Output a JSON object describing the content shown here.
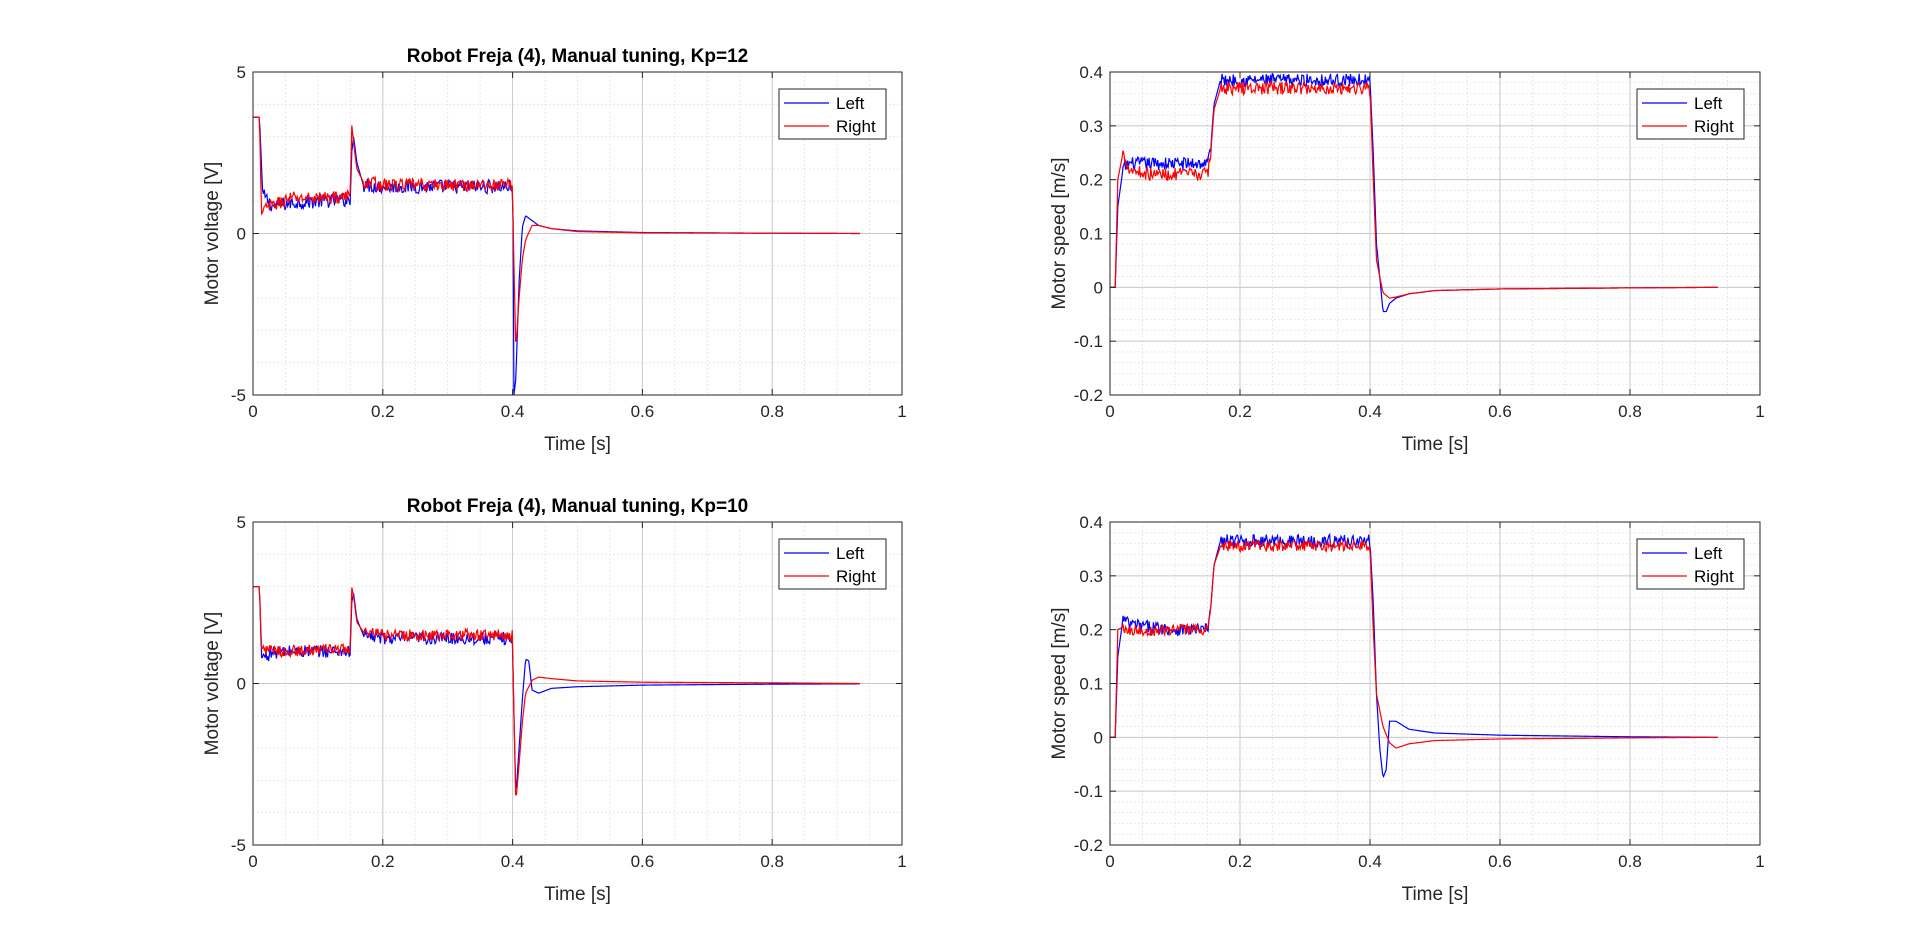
{
  "figure": {
    "background": "#ffffff"
  },
  "colors": {
    "left": "#0000ff",
    "right": "#ff0000",
    "axis": "#262626",
    "grid": "#dcdcdc"
  },
  "chart_data": [
    {
      "type": "line",
      "title": "Robot Freja (4), Manual tuning, Kp=12",
      "xlabel": "Time [s]",
      "ylabel": "Motor voltage [V]",
      "xlim": [
        0,
        1
      ],
      "ylim": [
        -5,
        5
      ],
      "xticks": [
        0,
        0.2,
        0.4,
        0.6,
        0.8,
        1
      ],
      "xtick_labels": [
        "0",
        "0.2",
        "0.4",
        "0.6",
        "0.8",
        "1"
      ],
      "yticks": [
        -5,
        0,
        5
      ],
      "ytick_labels": [
        "-5",
        "0",
        "5"
      ],
      "grid": true,
      "minor_grid": true,
      "legend_position": "top-right",
      "series": [
        {
          "name": "Left",
          "color": "#0000ff",
          "x": [
            0,
            0.005,
            0.01,
            0.015,
            0.03,
            0.06,
            0.1,
            0.15,
            0.152,
            0.155,
            0.16,
            0.17,
            0.2,
            0.3,
            0.4,
            0.401,
            0.402,
            0.405,
            0.41,
            0.415,
            0.42,
            0.43,
            0.44,
            0.46,
            0.5,
            0.6,
            0.8,
            0.935
          ],
          "y": [
            3.6,
            3.6,
            3.6,
            1.2,
            0.85,
            0.95,
            1.0,
            1.05,
            2.5,
            3.0,
            2.2,
            1.5,
            1.45,
            1.45,
            1.45,
            0,
            -5.0,
            -4.5,
            -1.5,
            0.2,
            0.55,
            0.4,
            0.25,
            0.15,
            0.08,
            0.03,
            0.01,
            0.0
          ],
          "noise": 0.22,
          "noise_ranges": [
            [
              0.015,
              0.15
            ],
            [
              0.17,
              0.4
            ]
          ]
        },
        {
          "name": "Right",
          "color": "#ff0000",
          "x": [
            0,
            0.005,
            0.01,
            0.013,
            0.02,
            0.06,
            0.1,
            0.15,
            0.152,
            0.155,
            0.16,
            0.17,
            0.2,
            0.3,
            0.4,
            0.401,
            0.405,
            0.41,
            0.415,
            0.42,
            0.43,
            0.44,
            0.46,
            0.5,
            0.6,
            0.8,
            0.935
          ],
          "y": [
            3.6,
            3.6,
            3.6,
            0.6,
            0.8,
            1.1,
            1.1,
            1.15,
            3.4,
            2.8,
            2.0,
            1.6,
            1.5,
            1.5,
            1.5,
            0,
            -3.6,
            -2.0,
            -0.8,
            -0.2,
            0.25,
            0.25,
            0.15,
            0.06,
            0.02,
            0.01,
            0.0
          ],
          "noise": 0.2,
          "noise_ranges": [
            [
              0.015,
              0.15
            ],
            [
              0.17,
              0.4
            ]
          ]
        }
      ]
    },
    {
      "type": "line",
      "title": "",
      "xlabel": "Time [s]",
      "ylabel": "Motor speed [m/s]",
      "xlim": [
        0,
        1
      ],
      "ylim": [
        -0.2,
        0.4
      ],
      "xticks": [
        0,
        0.2,
        0.4,
        0.6,
        0.8,
        1
      ],
      "xtick_labels": [
        "0",
        "0.2",
        "0.4",
        "0.6",
        "0.8",
        "1"
      ],
      "yticks": [
        -0.2,
        -0.1,
        0,
        0.1,
        0.2,
        0.3,
        0.4
      ],
      "ytick_labels": [
        "-0.2",
        "-0.1",
        "0",
        "0.1",
        "0.2",
        "0.3",
        "0.4"
      ],
      "grid": true,
      "minor_grid": true,
      "legend_position": "top-right",
      "series": [
        {
          "name": "Left",
          "color": "#0000ff",
          "x": [
            0,
            0.008,
            0.012,
            0.02,
            0.03,
            0.06,
            0.1,
            0.15,
            0.155,
            0.16,
            0.17,
            0.2,
            0.3,
            0.4,
            0.405,
            0.41,
            0.415,
            0.42,
            0.425,
            0.43,
            0.44,
            0.46,
            0.5,
            0.6,
            0.8,
            0.935
          ],
          "y": [
            0,
            0,
            0.15,
            0.22,
            0.23,
            0.23,
            0.23,
            0.23,
            0.26,
            0.34,
            0.385,
            0.385,
            0.385,
            0.385,
            0.25,
            0.08,
            0.02,
            -0.045,
            -0.045,
            -0.03,
            -0.02,
            -0.012,
            -0.006,
            -0.003,
            -0.001,
            0.0
          ],
          "noise": 0.012,
          "noise_ranges": [
            [
              0.02,
              0.155
            ],
            [
              0.17,
              0.4
            ]
          ]
        },
        {
          "name": "Right",
          "color": "#ff0000",
          "x": [
            0,
            0.008,
            0.012,
            0.02,
            0.03,
            0.06,
            0.1,
            0.15,
            0.155,
            0.16,
            0.17,
            0.2,
            0.3,
            0.4,
            0.405,
            0.41,
            0.415,
            0.42,
            0.43,
            0.44,
            0.46,
            0.5,
            0.6,
            0.8,
            0.935
          ],
          "y": [
            0,
            0,
            0.2,
            0.25,
            0.22,
            0.21,
            0.21,
            0.21,
            0.25,
            0.33,
            0.37,
            0.37,
            0.37,
            0.37,
            0.2,
            0.05,
            0.02,
            -0.01,
            -0.02,
            -0.018,
            -0.012,
            -0.006,
            -0.003,
            -0.001,
            0.0
          ],
          "noise": 0.012,
          "noise_ranges": [
            [
              0.02,
              0.155
            ],
            [
              0.17,
              0.4
            ]
          ]
        }
      ]
    },
    {
      "type": "line",
      "title": "Robot Freja (4), Manual tuning, Kp=10",
      "xlabel": "Time [s]",
      "ylabel": "Motor voltage [V]",
      "xlim": [
        0,
        1
      ],
      "ylim": [
        -5,
        5
      ],
      "xticks": [
        0,
        0.2,
        0.4,
        0.6,
        0.8,
        1
      ],
      "xtick_labels": [
        "0",
        "0.2",
        "0.4",
        "0.6",
        "0.8",
        "1"
      ],
      "yticks": [
        -5,
        0,
        5
      ],
      "ytick_labels": [
        "-5",
        "0",
        "5"
      ],
      "grid": true,
      "minor_grid": true,
      "legend_position": "top-right",
      "series": [
        {
          "name": "Left",
          "color": "#0000ff",
          "x": [
            0,
            0.005,
            0.01,
            0.013,
            0.03,
            0.06,
            0.1,
            0.15,
            0.152,
            0.155,
            0.16,
            0.17,
            0.2,
            0.3,
            0.4,
            0.401,
            0.405,
            0.41,
            0.415,
            0.42,
            0.425,
            0.43,
            0.44,
            0.46,
            0.5,
            0.6,
            0.8,
            0.935
          ],
          "y": [
            3.0,
            3.0,
            3.0,
            0.8,
            0.95,
            1.0,
            1.0,
            1.0,
            2.5,
            2.8,
            2.0,
            1.5,
            1.4,
            1.4,
            1.4,
            0,
            -3.5,
            -2.0,
            -0.5,
            0.75,
            0.7,
            -0.2,
            -0.3,
            -0.15,
            -0.1,
            -0.05,
            -0.02,
            -0.01
          ],
          "noise": 0.2,
          "noise_ranges": [
            [
              0.015,
              0.15
            ],
            [
              0.17,
              0.4
            ]
          ]
        },
        {
          "name": "Right",
          "color": "#ff0000",
          "x": [
            0,
            0.005,
            0.01,
            0.013,
            0.03,
            0.06,
            0.1,
            0.15,
            0.152,
            0.155,
            0.16,
            0.17,
            0.2,
            0.3,
            0.4,
            0.401,
            0.405,
            0.41,
            0.415,
            0.42,
            0.43,
            0.44,
            0.46,
            0.5,
            0.6,
            0.8,
            0.935
          ],
          "y": [
            3.0,
            3.0,
            3.0,
            1.1,
            1.0,
            1.0,
            1.05,
            1.05,
            3.0,
            2.7,
            1.9,
            1.6,
            1.5,
            1.5,
            1.5,
            0,
            -3.7,
            -2.5,
            -1.2,
            -0.3,
            0.1,
            0.2,
            0.15,
            0.08,
            0.04,
            0.02,
            0.0
          ],
          "noise": 0.18,
          "noise_ranges": [
            [
              0.015,
              0.15
            ],
            [
              0.17,
              0.4
            ]
          ]
        }
      ]
    },
    {
      "type": "line",
      "title": "",
      "xlabel": "Time [s]",
      "ylabel": "Motor speed [m/s]",
      "xlim": [
        0,
        1
      ],
      "ylim": [
        -0.2,
        0.4
      ],
      "xticks": [
        0,
        0.2,
        0.4,
        0.6,
        0.8,
        1
      ],
      "xtick_labels": [
        "0",
        "0.2",
        "0.4",
        "0.6",
        "0.8",
        "1"
      ],
      "yticks": [
        -0.2,
        -0.1,
        0,
        0.1,
        0.2,
        0.3,
        0.4
      ],
      "ytick_labels": [
        "-0.2",
        "-0.1",
        "0",
        "0.1",
        "0.2",
        "0.3",
        "0.4"
      ],
      "grid": true,
      "minor_grid": true,
      "legend_position": "top-right",
      "series": [
        {
          "name": "Left",
          "color": "#0000ff",
          "x": [
            0,
            0.008,
            0.012,
            0.02,
            0.03,
            0.06,
            0.1,
            0.15,
            0.155,
            0.16,
            0.17,
            0.2,
            0.3,
            0.4,
            0.405,
            0.41,
            0.415,
            0.42,
            0.425,
            0.43,
            0.44,
            0.46,
            0.5,
            0.6,
            0.8,
            0.935
          ],
          "y": [
            0,
            0,
            0.15,
            0.22,
            0.21,
            0.205,
            0.2,
            0.2,
            0.24,
            0.32,
            0.365,
            0.365,
            0.365,
            0.365,
            0.25,
            0.08,
            -0.02,
            -0.075,
            -0.06,
            0.03,
            0.03,
            0.015,
            0.008,
            0.004,
            0.001,
            0.0
          ],
          "noise": 0.012,
          "noise_ranges": [
            [
              0.02,
              0.155
            ],
            [
              0.17,
              0.4
            ]
          ]
        },
        {
          "name": "Right",
          "color": "#ff0000",
          "x": [
            0,
            0.008,
            0.012,
            0.02,
            0.03,
            0.06,
            0.1,
            0.15,
            0.155,
            0.16,
            0.17,
            0.2,
            0.3,
            0.4,
            0.405,
            0.41,
            0.415,
            0.42,
            0.43,
            0.44,
            0.46,
            0.5,
            0.6,
            0.8,
            0.935
          ],
          "y": [
            0,
            0,
            0.2,
            0.205,
            0.2,
            0.198,
            0.2,
            0.2,
            0.24,
            0.32,
            0.355,
            0.355,
            0.355,
            0.355,
            0.2,
            0.08,
            0.05,
            0.02,
            -0.01,
            -0.02,
            -0.012,
            -0.006,
            -0.003,
            -0.001,
            0.0
          ],
          "noise": 0.01,
          "noise_ranges": [
            [
              0.02,
              0.155
            ],
            [
              0.17,
              0.4
            ]
          ]
        }
      ]
    }
  ]
}
